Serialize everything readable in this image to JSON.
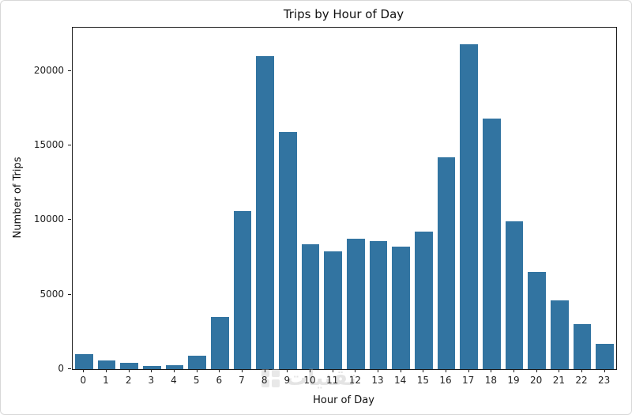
{
  "chart_data": {
    "type": "bar",
    "title": "Trips by Hour of Day",
    "xlabel": "Hour of Day",
    "ylabel": "Number of Trips",
    "categories": [
      "0",
      "1",
      "2",
      "3",
      "4",
      "5",
      "6",
      "7",
      "8",
      "9",
      "10",
      "11",
      "12",
      "13",
      "14",
      "15",
      "16",
      "17",
      "18",
      "19",
      "20",
      "21",
      "22",
      "23"
    ],
    "values": [
      1000,
      600,
      450,
      200,
      250,
      900,
      3500,
      10600,
      21000,
      15900,
      8400,
      7900,
      8750,
      8600,
      8200,
      9200,
      14200,
      21800,
      16800,
      9900,
      6500,
      4600,
      3000,
      1700
    ],
    "ylim": [
      0,
      22900
    ],
    "yticks": [
      0,
      5000,
      10000,
      15000,
      20000
    ],
    "bar_color": "#3274a1",
    "grid": false,
    "legend": null
  },
  "watermark": {
    "text": "تقنيات"
  }
}
